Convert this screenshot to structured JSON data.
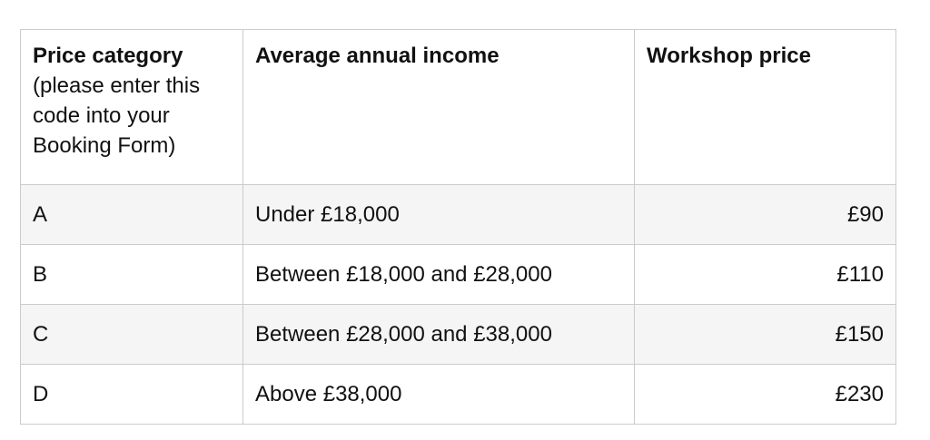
{
  "table": {
    "headers": {
      "category_title": "Price category",
      "category_note": "(please enter this code into your Booking Form)",
      "income": "Average annual income",
      "price": "Workshop price"
    },
    "rows": [
      {
        "code": "A",
        "income": "Under £18,000",
        "price": "£90"
      },
      {
        "code": "B",
        "income": "Between £18,000 and £28,000",
        "price": "£110"
      },
      {
        "code": "C",
        "income": "Between £28,000 and £38,000",
        "price": "£150"
      },
      {
        "code": "D",
        "income": "Above £38,000",
        "price": "£230"
      }
    ],
    "colors": {
      "text": "#111111",
      "border": "#cbcbcb",
      "zebra_row": "#f5f5f5",
      "background": "#ffffff"
    }
  }
}
